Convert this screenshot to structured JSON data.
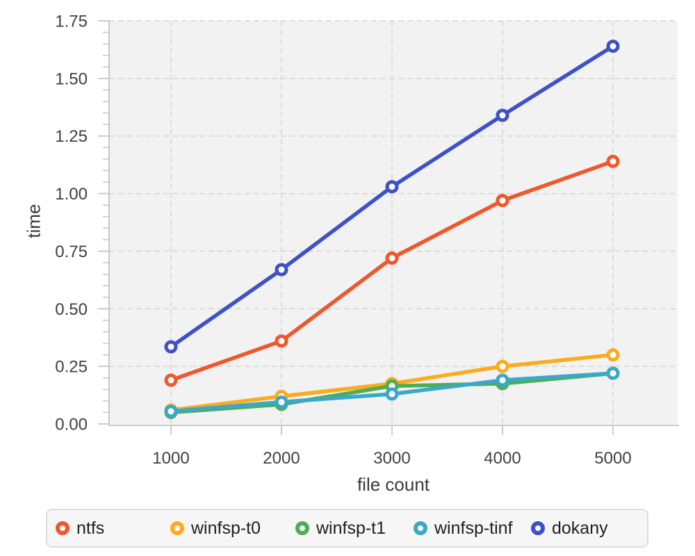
{
  "chart_data": {
    "type": "line",
    "title": "",
    "xlabel": "file count",
    "ylabel": "time",
    "x": [
      1000,
      2000,
      3000,
      4000,
      5000
    ],
    "x_tick_labels": [
      "1000",
      "2000",
      "3000",
      "4000",
      "5000"
    ],
    "y_tick_labels": [
      "0.00",
      "0.25",
      "0.50",
      "0.75",
      "1.00",
      "1.25",
      "1.50",
      "1.75"
    ],
    "ylim": [
      0,
      1.75
    ],
    "y_major_step": 0.25,
    "y_minor_step": 0.05,
    "grid": true,
    "marker": "open-circle",
    "legend_position": "bottom",
    "series": [
      {
        "name": "ntfs",
        "color": "#f0572b",
        "values": [
          0.19,
          0.36,
          0.72,
          0.97,
          1.14
        ]
      },
      {
        "name": "winfsp-t0",
        "color": "#fbab1f",
        "values": [
          0.06,
          0.12,
          0.175,
          0.25,
          0.3
        ]
      },
      {
        "name": "winfsp-t1",
        "color": "#4fad52",
        "values": [
          0.05,
          0.085,
          0.165,
          0.175,
          0.22
        ]
      },
      {
        "name": "winfsp-tinf",
        "color": "#3ba8c9",
        "values": [
          0.055,
          0.095,
          0.13,
          0.19,
          0.22
        ]
      },
      {
        "name": "dokany",
        "color": "#3e51c8",
        "values": [
          0.335,
          0.67,
          1.03,
          1.34,
          1.64
        ]
      }
    ]
  },
  "colors": {
    "plot_background": "#f2f2f2",
    "gridline": "#d4d4d4",
    "axis": "#c6c6c6",
    "tick_label": "#404040",
    "axis_label": "#383838",
    "legend_background": "#f6f6f7",
    "legend_border": "#dedede",
    "legend_text": "#1f1f1f"
  }
}
